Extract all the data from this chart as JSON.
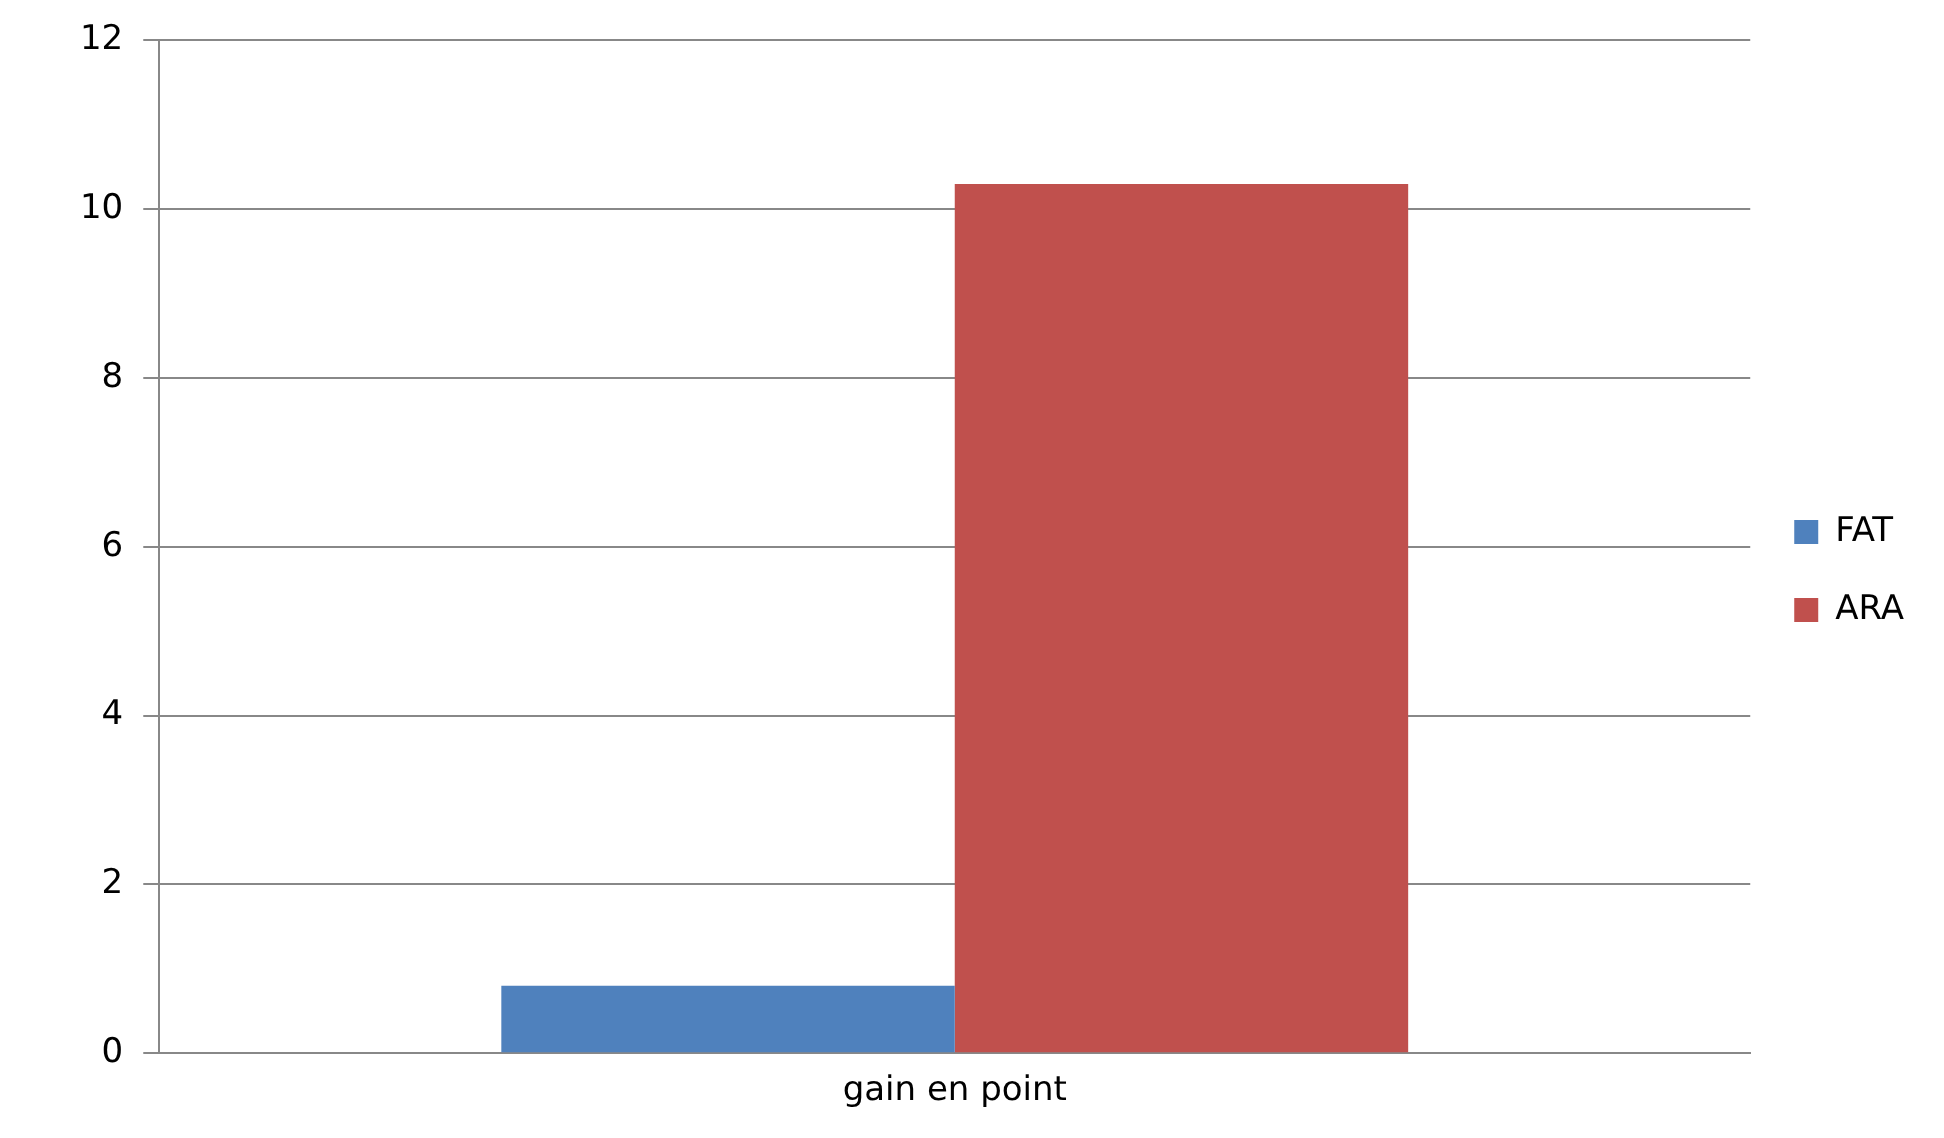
{
  "chart_data": {
    "type": "bar",
    "categories": [
      "gain en point"
    ],
    "series": [
      {
        "name": "FAT",
        "color": "#4f81bd",
        "values": [
          0.8
        ]
      },
      {
        "name": "ARA",
        "color": "#c0504d",
        "values": [
          10.3
        ]
      }
    ],
    "ylim": [
      0,
      12
    ],
    "yticks": [
      0,
      2,
      4,
      6,
      8,
      10,
      12
    ],
    "grid": "y",
    "legend": "right"
  }
}
